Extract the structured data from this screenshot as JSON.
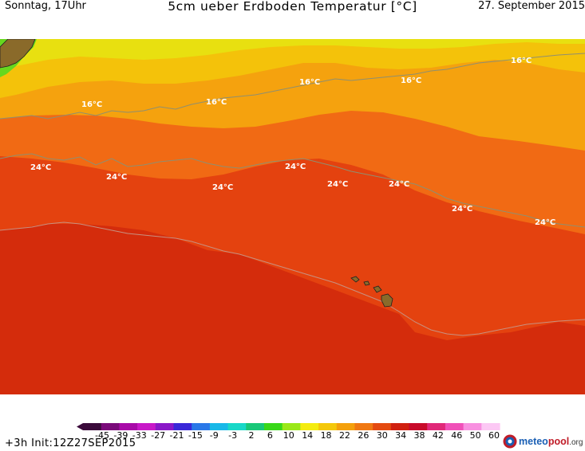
{
  "header": {
    "left": "Sonntag, 17Uhr",
    "title": "5cm ueber Erdboden Temperatur [°C]",
    "right": "27. September 2015"
  },
  "map": {
    "isotherm_labels": [
      {
        "text": "16°C",
        "value": 16
      },
      {
        "text": "16°C",
        "value": 16
      },
      {
        "text": "16°C",
        "value": 16
      },
      {
        "text": "16°C",
        "value": 16
      },
      {
        "text": "16°C",
        "value": 16
      },
      {
        "text": "24°C",
        "value": 24
      },
      {
        "text": "24°C",
        "value": 24
      },
      {
        "text": "24°C",
        "value": 24
      },
      {
        "text": "24°C",
        "value": 24
      },
      {
        "text": "24°C",
        "value": 24
      },
      {
        "text": "24°C",
        "value": 24
      },
      {
        "text": "24°C",
        "value": 24
      },
      {
        "text": "24°C",
        "value": 24
      }
    ],
    "colors": {
      "very_warm": "#d42c0c",
      "warm": "#e4420f",
      "mild": "#f16a14",
      "cool": "#f5a20e",
      "cooler": "#f4c20a",
      "cold": "#e8e010",
      "coldest": "#66d81e",
      "land": "#8a6a2a"
    }
  },
  "legend": {
    "ticks": [
      "-45",
      "-39",
      "-33",
      "-27",
      "-21",
      "-15",
      "-9",
      "-3",
      "2",
      "6",
      "10",
      "14",
      "18",
      "22",
      "26",
      "30",
      "34",
      "38",
      "42",
      "46",
      "50",
      "60"
    ],
    "colors": [
      "#3a0a3a",
      "#7a0a7a",
      "#a80aa8",
      "#c818c8",
      "#8a18c8",
      "#3a28d8",
      "#2a78e8",
      "#18b8e8",
      "#18d8c8",
      "#18c878",
      "#38d818",
      "#9ae818",
      "#f4ec10",
      "#f4c80a",
      "#f4a00c",
      "#f07812",
      "#e44a10",
      "#d02010",
      "#c80a2a",
      "#e02878",
      "#f050b8",
      "#f890e0",
      "#fcc8f4"
    ],
    "unit": "°C"
  },
  "footer": {
    "left": "+3h  Init:12Z27SEP2015",
    "logo_main": "meteo",
    "logo_accent": "pool",
    "logo_suffix": ".org"
  }
}
